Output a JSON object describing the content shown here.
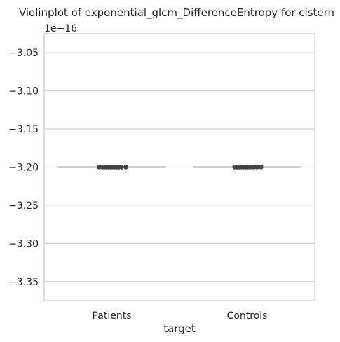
{
  "chart_data": {
    "type": "violin",
    "title": "Violinplot of exponential_glcm_DifferenceEntropy for cistern",
    "xlabel": "target",
    "ylabel": "",
    "offset_label": "1e−16",
    "y_scale_exponent": -16,
    "categories": [
      "Patients",
      "Controls"
    ],
    "values": [
      -3.2,
      -3.2
    ],
    "ylim": [
      -3.375,
      -3.025
    ],
    "yticks": [
      -3.05,
      -3.1,
      -3.15,
      -3.2,
      -3.25,
      -3.3,
      -3.35
    ],
    "ytick_labels": [
      "−3.05",
      "−3.10",
      "−3.15",
      "−3.20",
      "−3.25",
      "−3.30",
      "−3.35"
    ],
    "grid": "horizontal",
    "legend": "none",
    "colors": {
      "grid": "#cccccc",
      "spine": "#cccccc",
      "line": "#555555",
      "marker": "#444444",
      "text": "#262626"
    }
  }
}
